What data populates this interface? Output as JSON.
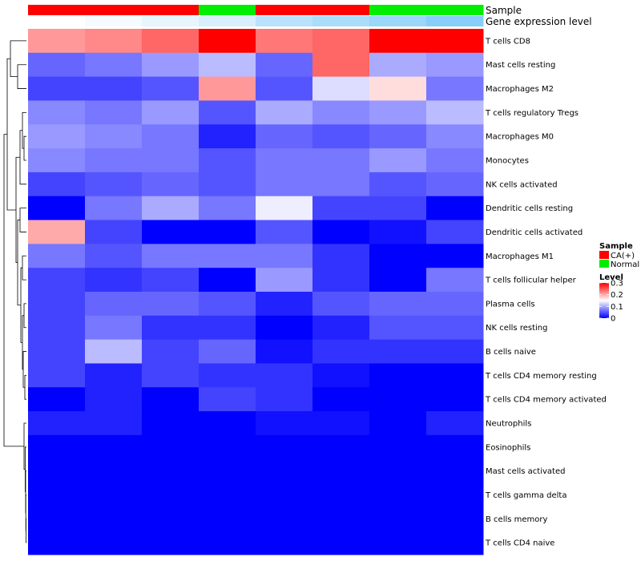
{
  "chart_data": {
    "type": "heatmap",
    "annotation_labels": {
      "sample": "Sample",
      "gene": "Gene expression level"
    },
    "columns": [
      {
        "sample": "CA(+)",
        "gene_level": 0.0
      },
      {
        "sample": "CA(+)",
        "gene_level": 0.02
      },
      {
        "sample": "CA(+)",
        "gene_level": 0.05
      },
      {
        "sample": "Normal",
        "gene_level": 0.08
      },
      {
        "sample": "CA(+)",
        "gene_level": 0.14
      },
      {
        "sample": "CA(+)",
        "gene_level": 0.17
      },
      {
        "sample": "Normal",
        "gene_level": 0.2
      },
      {
        "sample": "Normal",
        "gene_level": 0.24
      }
    ],
    "rows": [
      "T cells CD8",
      "Mast cells resting",
      "Macrophages M2",
      "T cells regulatory  Tregs",
      "Macrophages M0",
      "Monocytes",
      "NK cells activated",
      "Dendritic cells resting",
      "Dendritic cells activated",
      "Macrophages M1",
      "T cells follicular helper",
      "Plasma cells",
      "NK cells resting",
      "B cells naive",
      "T cells CD4 memory resting",
      "T cells CD4 memory activated",
      "Neutrophils",
      "Eosinophils",
      "Mast cells activated",
      "T cells gamma delta",
      "B cells memory",
      "T cells CD4 naive"
    ],
    "values": [
      [
        0.21,
        0.22,
        0.24,
        0.3,
        0.23,
        0.24,
        0.3,
        0.3
      ],
      [
        0.06,
        0.07,
        0.09,
        0.11,
        0.06,
        0.24,
        0.1,
        0.09
      ],
      [
        0.04,
        0.04,
        0.05,
        0.21,
        0.05,
        0.13,
        0.17,
        0.07
      ],
      [
        0.08,
        0.07,
        0.09,
        0.05,
        0.1,
        0.08,
        0.09,
        0.11
      ],
      [
        0.09,
        0.08,
        0.07,
        0.02,
        0.06,
        0.05,
        0.06,
        0.08
      ],
      [
        0.08,
        0.07,
        0.07,
        0.05,
        0.07,
        0.07,
        0.09,
        0.07
      ],
      [
        0.04,
        0.05,
        0.06,
        0.05,
        0.07,
        0.07,
        0.05,
        0.06
      ],
      [
        0.0,
        0.07,
        0.1,
        0.07,
        0.14,
        0.04,
        0.04,
        0.0
      ],
      [
        0.2,
        0.04,
        0.0,
        0.0,
        0.05,
        0.0,
        0.01,
        0.04
      ],
      [
        0.07,
        0.05,
        0.07,
        0.07,
        0.07,
        0.03,
        0.0,
        0.0
      ],
      [
        0.04,
        0.03,
        0.04,
        0.0,
        0.09,
        0.03,
        0.0,
        0.07
      ],
      [
        0.04,
        0.06,
        0.06,
        0.05,
        0.02,
        0.05,
        0.06,
        0.06
      ],
      [
        0.04,
        0.07,
        0.03,
        0.03,
        0.0,
        0.02,
        0.05,
        0.05
      ],
      [
        0.04,
        0.11,
        0.04,
        0.06,
        0.01,
        0.03,
        0.03,
        0.03
      ],
      [
        0.04,
        0.02,
        0.04,
        0.03,
        0.03,
        0.01,
        0.0,
        0.0
      ],
      [
        0.0,
        0.02,
        0.0,
        0.04,
        0.03,
        0.0,
        0.0,
        0.0
      ],
      [
        0.02,
        0.02,
        0.0,
        0.0,
        0.01,
        0.01,
        0.0,
        0.02
      ],
      [
        0.0,
        0.0,
        0.0,
        0.0,
        0.0,
        0.0,
        0.0,
        0.0
      ],
      [
        0.0,
        0.0,
        0.0,
        0.0,
        0.0,
        0.0,
        0.0,
        0.0
      ],
      [
        0.0,
        0.0,
        0.0,
        0.0,
        0.0,
        0.0,
        0.0,
        0.0
      ],
      [
        0.0,
        0.0,
        0.0,
        0.0,
        0.0,
        0.0,
        0.0,
        0.0
      ],
      [
        0.0,
        0.0,
        0.0,
        0.0,
        0.0,
        0.0,
        0.0,
        0.0
      ]
    ],
    "color_scale": {
      "min": 0,
      "mid": 0.15,
      "max": 0.3,
      "low_color": "#0000ff",
      "mid_color": "#ffffff",
      "high_color": "#ff0000"
    },
    "gene_level_colors": {
      "low": "#ffffff",
      "high": "#87cefa"
    },
    "legend": {
      "position": "right",
      "sample_title": "Sample",
      "sample_entries": [
        {
          "label": "CA(+)",
          "color": "#ff0000"
        },
        {
          "label": "Normal",
          "color": "#00ee00"
        }
      ],
      "level_title": "Level",
      "level_ticks": [
        0.3,
        0.2,
        0.1,
        0
      ],
      "level_tick_labels": [
        "0.3",
        "0.2",
        "0.1",
        "0"
      ]
    },
    "row_dendrogram": true,
    "column_dendrogram": false
  }
}
